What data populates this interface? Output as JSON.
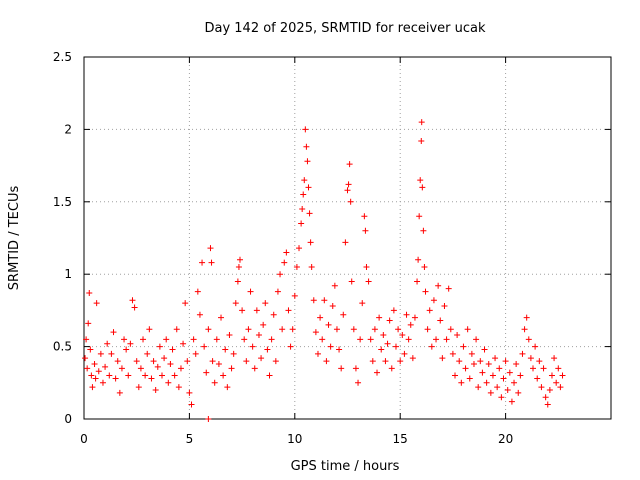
{
  "chart_data": {
    "type": "scatter",
    "title": "Day 142 of 2025, SRMTID for receiver ucak",
    "xlabel": "GPS time / hours",
    "ylabel": "SRMTID / TECUs",
    "xlim": [
      0,
      25
    ],
    "ylim": [
      0,
      2.5
    ],
    "xticks": [
      "0",
      "5",
      "10",
      "15",
      "20"
    ],
    "yticks": [
      "0",
      "0.5",
      "1",
      "1.5",
      "2",
      "2.5"
    ],
    "grid": true,
    "marker": "plus",
    "color": "#ff0000",
    "series": [
      {
        "name": "SRMTID",
        "points": [
          [
            0.05,
            0.42
          ],
          [
            0.1,
            0.55
          ],
          [
            0.15,
            0.35
          ],
          [
            0.2,
            0.66
          ],
          [
            0.25,
            0.87
          ],
          [
            0.3,
            0.48
          ],
          [
            0.35,
            0.3
          ],
          [
            0.4,
            0.22
          ],
          [
            0.5,
            0.38
          ],
          [
            0.55,
            0.28
          ],
          [
            0.6,
            0.8
          ],
          [
            0.7,
            0.33
          ],
          [
            0.8,
            0.45
          ],
          [
            0.9,
            0.25
          ],
          [
            1.0,
            0.36
          ],
          [
            1.1,
            0.52
          ],
          [
            1.2,
            0.3
          ],
          [
            1.3,
            0.45
          ],
          [
            1.4,
            0.6
          ],
          [
            1.5,
            0.28
          ],
          [
            1.6,
            0.4
          ],
          [
            1.7,
            0.18
          ],
          [
            1.8,
            0.35
          ],
          [
            1.9,
            0.55
          ],
          [
            2.0,
            0.48
          ],
          [
            2.1,
            0.3
          ],
          [
            2.2,
            0.52
          ],
          [
            2.3,
            0.82
          ],
          [
            2.4,
            0.77
          ],
          [
            2.5,
            0.4
          ],
          [
            2.6,
            0.22
          ],
          [
            2.7,
            0.35
          ],
          [
            2.8,
            0.55
          ],
          [
            2.9,
            0.3
          ],
          [
            3.0,
            0.45
          ],
          [
            3.1,
            0.62
          ],
          [
            3.2,
            0.28
          ],
          [
            3.3,
            0.4
          ],
          [
            3.4,
            0.2
          ],
          [
            3.5,
            0.36
          ],
          [
            3.6,
            0.5
          ],
          [
            3.7,
            0.3
          ],
          [
            3.8,
            0.42
          ],
          [
            3.9,
            0.55
          ],
          [
            4.0,
            0.25
          ],
          [
            4.1,
            0.38
          ],
          [
            4.2,
            0.48
          ],
          [
            4.3,
            0.3
          ],
          [
            4.4,
            0.62
          ],
          [
            4.5,
            0.22
          ],
          [
            4.6,
            0.35
          ],
          [
            4.7,
            0.52
          ],
          [
            4.8,
            0.8
          ],
          [
            4.9,
            0.4
          ],
          [
            5.0,
            0.18
          ],
          [
            5.1,
            0.1
          ],
          [
            5.2,
            0.55
          ],
          [
            5.3,
            0.45
          ],
          [
            5.4,
            0.88
          ],
          [
            5.5,
            0.72
          ],
          [
            5.6,
            1.08
          ],
          [
            5.7,
            0.5
          ],
          [
            5.8,
            0.32
          ],
          [
            5.9,
            0.62
          ],
          [
            6.0,
            1.18
          ],
          [
            6.05,
            1.08
          ],
          [
            6.1,
            0.4
          ],
          [
            6.2,
            0.25
          ],
          [
            6.3,
            0.55
          ],
          [
            6.4,
            0.38
          ],
          [
            6.5,
            0.7
          ],
          [
            6.6,
            0.3
          ],
          [
            6.7,
            0.48
          ],
          [
            6.8,
            0.22
          ],
          [
            6.9,
            0.58
          ],
          [
            7.0,
            0.35
          ],
          [
            7.1,
            0.45
          ],
          [
            7.2,
            0.8
          ],
          [
            7.3,
            0.95
          ],
          [
            7.35,
            1.05
          ],
          [
            7.4,
            1.1
          ],
          [
            7.5,
            0.75
          ],
          [
            7.6,
            0.55
          ],
          [
            7.7,
            0.4
          ],
          [
            7.8,
            0.62
          ],
          [
            7.9,
            0.88
          ],
          [
            8.0,
            0.5
          ],
          [
            8.1,
            0.35
          ],
          [
            8.2,
            0.75
          ],
          [
            8.3,
            0.58
          ],
          [
            8.4,
            0.42
          ],
          [
            8.5,
            0.65
          ],
          [
            8.6,
            0.8
          ],
          [
            8.7,
            0.48
          ],
          [
            8.8,
            0.3
          ],
          [
            8.9,
            0.55
          ],
          [
            9.0,
            0.72
          ],
          [
            9.1,
            0.4
          ],
          [
            9.2,
            0.88
          ],
          [
            9.3,
            1.0
          ],
          [
            9.4,
            0.62
          ],
          [
            9.5,
            1.08
          ],
          [
            9.6,
            1.15
          ],
          [
            9.7,
            0.75
          ],
          [
            9.8,
            0.5
          ],
          [
            9.9,
            0.62
          ],
          [
            10.0,
            0.85
          ],
          [
            10.1,
            1.05
          ],
          [
            10.2,
            1.18
          ],
          [
            10.3,
            1.35
          ],
          [
            10.35,
            1.45
          ],
          [
            10.4,
            1.55
          ],
          [
            10.45,
            1.65
          ],
          [
            10.5,
            2.0
          ],
          [
            10.55,
            1.88
          ],
          [
            10.6,
            1.78
          ],
          [
            10.65,
            1.6
          ],
          [
            10.7,
            1.42
          ],
          [
            10.75,
            1.22
          ],
          [
            10.8,
            1.05
          ],
          [
            10.9,
            0.82
          ],
          [
            11.0,
            0.6
          ],
          [
            11.1,
            0.45
          ],
          [
            11.2,
            0.7
          ],
          [
            11.3,
            0.55
          ],
          [
            11.4,
            0.82
          ],
          [
            11.5,
            0.4
          ],
          [
            11.6,
            0.65
          ],
          [
            11.7,
            0.5
          ],
          [
            11.8,
            0.78
          ],
          [
            11.9,
            0.92
          ],
          [
            12.0,
            0.62
          ],
          [
            12.1,
            0.48
          ],
          [
            12.2,
            0.35
          ],
          [
            12.3,
            0.72
          ],
          [
            12.4,
            1.22
          ],
          [
            12.5,
            1.58
          ],
          [
            12.55,
            1.62
          ],
          [
            12.6,
            1.76
          ],
          [
            12.65,
            1.5
          ],
          [
            12.7,
            0.95
          ],
          [
            12.8,
            0.62
          ],
          [
            12.9,
            0.35
          ],
          [
            13.0,
            0.25
          ],
          [
            13.1,
            0.55
          ],
          [
            13.2,
            0.8
          ],
          [
            13.3,
            1.4
          ],
          [
            13.35,
            1.3
          ],
          [
            13.4,
            1.05
          ],
          [
            13.5,
            0.95
          ],
          [
            13.6,
            0.55
          ],
          [
            13.7,
            0.4
          ],
          [
            13.8,
            0.62
          ],
          [
            13.9,
            0.32
          ],
          [
            14.0,
            0.7
          ],
          [
            14.1,
            0.48
          ],
          [
            14.2,
            0.58
          ],
          [
            14.3,
            0.4
          ],
          [
            14.4,
            0.52
          ],
          [
            14.5,
            0.68
          ],
          [
            14.6,
            0.35
          ],
          [
            14.7,
            0.75
          ],
          [
            14.8,
            0.5
          ],
          [
            14.9,
            0.62
          ],
          [
            15.0,
            0.4
          ],
          [
            15.1,
            0.58
          ],
          [
            15.2,
            0.45
          ],
          [
            15.3,
            0.72
          ],
          [
            15.4,
            0.55
          ],
          [
            15.5,
            0.65
          ],
          [
            15.6,
            0.42
          ],
          [
            15.7,
            0.7
          ],
          [
            15.8,
            0.95
          ],
          [
            15.85,
            1.1
          ],
          [
            15.9,
            1.4
          ],
          [
            15.95,
            1.65
          ],
          [
            16.0,
            1.92
          ],
          [
            16.02,
            2.05
          ],
          [
            16.05,
            1.6
          ],
          [
            16.1,
            1.3
          ],
          [
            16.15,
            1.05
          ],
          [
            16.2,
            0.88
          ],
          [
            16.3,
            0.62
          ],
          [
            16.4,
            0.75
          ],
          [
            16.5,
            0.5
          ],
          [
            16.6,
            0.82
          ],
          [
            16.7,
            0.55
          ],
          [
            16.8,
            0.92
          ],
          [
            16.9,
            0.68
          ],
          [
            17.0,
            0.42
          ],
          [
            17.1,
            0.78
          ],
          [
            17.2,
            0.55
          ],
          [
            17.3,
            0.9
          ],
          [
            17.4,
            0.62
          ],
          [
            17.5,
            0.45
          ],
          [
            17.6,
            0.3
          ],
          [
            17.7,
            0.58
          ],
          [
            17.8,
            0.4
          ],
          [
            17.9,
            0.25
          ],
          [
            18.0,
            0.5
          ],
          [
            18.1,
            0.35
          ],
          [
            18.2,
            0.62
          ],
          [
            18.3,
            0.28
          ],
          [
            18.4,
            0.45
          ],
          [
            18.5,
            0.38
          ],
          [
            18.6,
            0.55
          ],
          [
            18.7,
            0.22
          ],
          [
            18.8,
            0.4
          ],
          [
            18.9,
            0.32
          ],
          [
            19.0,
            0.48
          ],
          [
            19.1,
            0.25
          ],
          [
            19.2,
            0.38
          ],
          [
            19.3,
            0.18
          ],
          [
            19.4,
            0.3
          ],
          [
            19.5,
            0.42
          ],
          [
            19.6,
            0.22
          ],
          [
            19.7,
            0.35
          ],
          [
            19.8,
            0.15
          ],
          [
            19.9,
            0.28
          ],
          [
            20.0,
            0.4
          ],
          [
            20.1,
            0.2
          ],
          [
            20.2,
            0.32
          ],
          [
            20.3,
            0.12
          ],
          [
            20.4,
            0.25
          ],
          [
            20.5,
            0.38
          ],
          [
            20.6,
            0.18
          ],
          [
            20.7,
            0.3
          ],
          [
            20.8,
            0.45
          ],
          [
            20.9,
            0.62
          ],
          [
            21.0,
            0.7
          ],
          [
            21.1,
            0.55
          ],
          [
            21.2,
            0.42
          ],
          [
            21.3,
            0.35
          ],
          [
            21.4,
            0.5
          ],
          [
            21.5,
            0.28
          ],
          [
            21.6,
            0.4
          ],
          [
            21.7,
            0.22
          ],
          [
            21.8,
            0.35
          ],
          [
            21.9,
            0.15
          ],
          [
            22.0,
            0.1
          ],
          [
            22.1,
            0.2
          ],
          [
            22.2,
            0.3
          ],
          [
            22.3,
            0.42
          ],
          [
            22.4,
            0.25
          ],
          [
            22.5,
            0.35
          ],
          [
            22.6,
            0.22
          ],
          [
            22.7,
            0.3
          ],
          [
            5.9,
            0.0
          ]
        ]
      }
    ]
  }
}
